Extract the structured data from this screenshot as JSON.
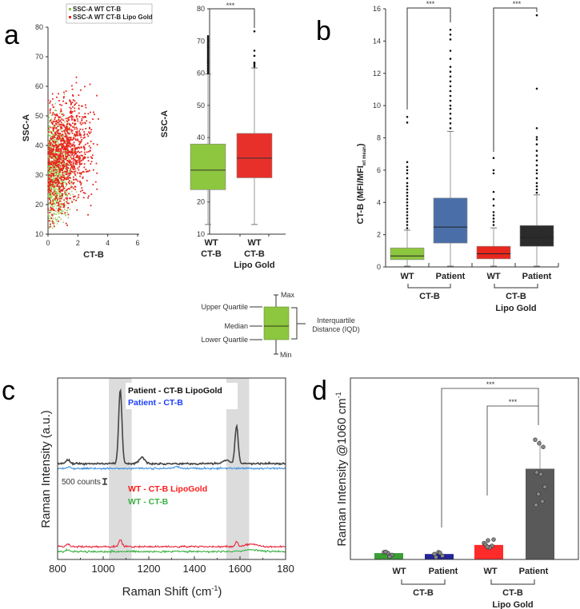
{
  "panels": {
    "a": "a",
    "b": "b",
    "c": "c",
    "d": "d"
  },
  "chart_data": [
    {
      "id": "a-scatter",
      "type": "scatter",
      "legend": [
        "SSC-A WT CT-B",
        "SSC-A WT CT-B Lipo Gold"
      ],
      "legend_position": "top",
      "xlabel": "CT-B",
      "ylabel": "SSC-A",
      "xlim": [
        0,
        6
      ],
      "ylim": [
        10,
        80
      ],
      "xticks": [
        "0",
        "2",
        "4",
        "6"
      ],
      "yticks": [
        "10",
        "20",
        "30",
        "40",
        "50",
        "60",
        "70",
        "80"
      ],
      "series": [
        {
          "name": "SSC-A WT CT-B",
          "color": "#8dc63f",
          "n": 900,
          "x_center": 0.5,
          "x_spread": 0.9,
          "y_center": 30,
          "y_spread": 9
        },
        {
          "name": "SSC-A WT CT-B Lipo Gold",
          "color": "#e8271f",
          "n": 1100,
          "x_center": 1.1,
          "x_spread": 1.0,
          "y_center": 34,
          "y_spread": 9
        }
      ]
    },
    {
      "id": "a-box",
      "type": "box",
      "ylabel": "SSC-A",
      "ylim": [
        10,
        80
      ],
      "yticks": [
        "10",
        "20",
        "30",
        "40",
        "50",
        "60",
        "70",
        "80"
      ],
      "significance": "***",
      "categories": [
        [
          "WT",
          "CT-B"
        ],
        [
          "WT",
          "CT-B",
          "Lipo Gold"
        ]
      ],
      "series": [
        {
          "color": "#8dc63f",
          "min": 13,
          "q1": 23.8,
          "median": 29.9,
          "q3": 38,
          "max": 59.7,
          "outliers": [
            60,
            60.5,
            61,
            61.5,
            62,
            62.5,
            63,
            63.5,
            64,
            64.5,
            65,
            65.5,
            66,
            66.5,
            67,
            67.5,
            68,
            68.5,
            69,
            69.5,
            70,
            70.5,
            71,
            71.5
          ]
        },
        {
          "color": "#e8302a",
          "min": 13,
          "q1": 27.5,
          "median": 33.6,
          "q3": 41.3,
          "max": 61.6,
          "outliers": [
            62,
            62.5,
            63,
            63.3,
            65.4,
            67,
            73
          ]
        }
      ]
    },
    {
      "id": "b-box",
      "type": "box",
      "ylabel": "CT-B (MFI/MFI",
      "ylabel_sub": "wt mean",
      "ylabel_end": ")",
      "ylim": [
        0,
        16
      ],
      "yticks": [
        "0",
        "2",
        "4",
        "6",
        "8",
        "10",
        "12",
        "14",
        "16"
      ],
      "significance": [
        "***",
        "***"
      ],
      "categories": [
        "WT",
        "Patient",
        "WT",
        "Patient"
      ],
      "groups": [
        [
          "CT-B"
        ],
        [
          "CT-B",
          "Lipo Gold"
        ]
      ],
      "series": [
        {
          "color": "#8dc63f",
          "min": 0.05,
          "q1": 0.45,
          "median": 0.68,
          "q3": 1.18,
          "max": 2.28,
          "outliers": [
            2.4,
            2.6,
            2.8,
            3,
            3.2,
            3.4,
            3.6,
            3.8,
            4,
            4.2,
            4.4,
            4.6,
            4.8,
            5,
            5.2,
            5.5,
            5.8,
            6,
            6.2,
            6.5,
            8.95,
            9.3
          ]
        },
        {
          "color": "#4a6fa8",
          "min": 0.05,
          "q1": 1.48,
          "median": 2.47,
          "q3": 4.27,
          "max": 8.4,
          "outliers": [
            8.6,
            8.9,
            9.2,
            9.5,
            9.8,
            10,
            10.3,
            10.6,
            10.9,
            11.2,
            11.5,
            11.8,
            12.1,
            12.4,
            12.9,
            13.4,
            14.1,
            14.4,
            14.7
          ]
        },
        {
          "color": "#e8271f",
          "min": 0.05,
          "q1": 0.5,
          "median": 0.82,
          "q3": 1.28,
          "max": 2.42,
          "outliers": [
            2.6,
            2.8,
            3,
            3.2,
            3.4,
            3.8,
            4.2,
            4.65,
            5.8,
            6,
            6.75
          ]
        },
        {
          "color": "#2b2b2b",
          "min": 0.05,
          "q1": 1.28,
          "median": 1.83,
          "q3": 2.57,
          "max": 4.47,
          "outliers": [
            4.6,
            4.8,
            5,
            5.2,
            5.5,
            5.8,
            6,
            6.3,
            6.6,
            6.9,
            7.2,
            7.6,
            7.9,
            8.05,
            8.6,
            11.05,
            15.6
          ]
        }
      ]
    },
    {
      "id": "c-spectra",
      "type": "line",
      "xlabel": "Raman Shift (cm",
      "xlabel_sup": "-1",
      "xlabel_end": ")",
      "ylabel": "Raman Intensity (a.u.)",
      "xlim": [
        800,
        1800
      ],
      "ylim": [
        0,
        16000
      ],
      "xticks": [
        "800",
        "1000",
        "1200",
        "1400",
        "1600",
        "180"
      ],
      "scale_bar": "500 counts",
      "highlight_bands": [
        [
          1025,
          1125
        ],
        [
          1540,
          1640
        ]
      ],
      "series": [
        {
          "name": "Patient - CT-B LipoGold",
          "color": "#444444",
          "baseline": 8450,
          "peaks": [
            [
              845,
              400,
              10
            ],
            [
              1075,
              6550,
              10
            ],
            [
              1170,
              550,
              18
            ],
            [
              1540,
              300,
              20
            ],
            [
              1585,
              3300,
              10
            ]
          ]
        },
        {
          "name": "Patient - CT-B",
          "color": "#3d8fe0",
          "baseline": 8030,
          "peaks": [
            [
              850,
              180,
              10
            ],
            [
              1320,
              120,
              20
            ]
          ]
        },
        {
          "name": "WT - CT-B LipoGold",
          "color": "#e8273a",
          "baseline": 1130,
          "peaks": [
            [
              845,
              220,
              10
            ],
            [
              1075,
              560,
              10
            ],
            [
              1585,
              420,
              8
            ],
            [
              1650,
              200,
              40
            ]
          ]
        },
        {
          "name": "WT - CT-B",
          "color": "#3cb043",
          "baseline": 700,
          "peaks": [
            [
              845,
              200,
              10
            ],
            [
              1650,
              150,
              40
            ]
          ]
        }
      ],
      "legend_colors": [
        "#111111",
        "#1a3cff",
        "#ff1a1a",
        "#3cb043"
      ]
    },
    {
      "id": "d-bar",
      "type": "bar",
      "ylabel": "Raman Intensity @1060 cm",
      "ylabel_sup": "-1",
      "ylim": [
        0,
        100
      ],
      "categories": [
        "WT",
        "Patient",
        "WT",
        "Patient"
      ],
      "groups": [
        [
          "CT-B"
        ],
        [
          "CT-B",
          "Lipo Gold"
        ]
      ],
      "significance": [
        "***",
        "***"
      ],
      "values": [
        3.5,
        3.0,
        8.0,
        50
      ],
      "colors": [
        "#3a9e35",
        "#24249a",
        "#ff2a2a",
        "#595959"
      ],
      "points": [
        [
          4,
          3.5,
          2.5,
          4.2,
          1.5
        ],
        [
          3,
          4,
          2,
          1.2,
          3.6
        ],
        [
          9,
          10.5,
          7.5,
          8.2,
          6.5,
          11,
          7
        ],
        [
          66,
          64,
          62,
          48,
          47,
          40,
          36,
          32,
          30
        ]
      ]
    }
  ],
  "iqd_legend": {
    "max": "Max",
    "upper": "Upper Quartile",
    "median": "Median",
    "lower": "Lower Quartile",
    "min": "Min",
    "iqd1": "Interquartile",
    "iqd2": "Distance (IQD)"
  }
}
